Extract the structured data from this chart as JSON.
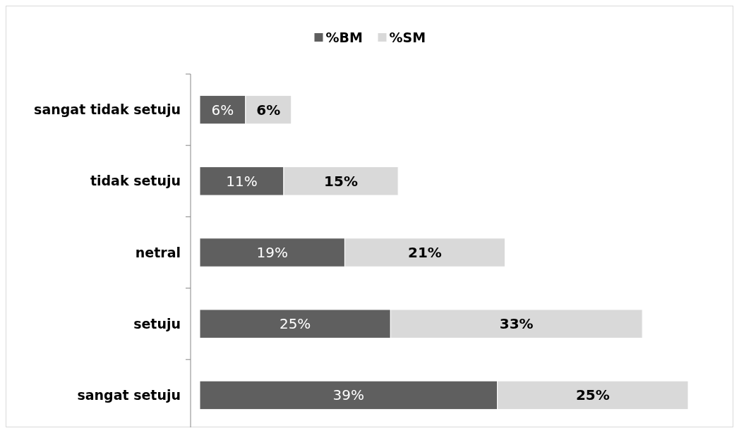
{
  "chart_data": {
    "type": "bar",
    "orientation": "horizontal",
    "stacked": true,
    "legend": "top",
    "categories": [
      "sangat tidak setuju",
      "tidak setuju",
      "netral",
      "setuju",
      "sangat setuju"
    ],
    "series": [
      {
        "name": "%BM",
        "color": "#5f5f5f",
        "values": [
          6,
          11,
          19,
          25,
          39
        ],
        "value_labels": [
          "6%",
          "11%",
          "19%",
          "25%",
          "39%"
        ]
      },
      {
        "name": "%SM",
        "color": "#d9d9d9",
        "values": [
          6,
          15,
          21,
          33,
          25
        ],
        "value_labels": [
          "6%",
          "15%",
          "21%",
          "33%",
          "25%"
        ]
      }
    ]
  }
}
